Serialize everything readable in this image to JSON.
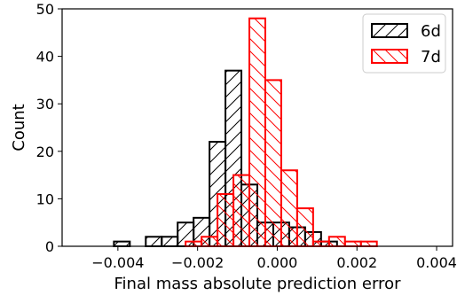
{
  "chart_data": {
    "type": "bar",
    "chart_kind": "histogram",
    "xlabel": "Final mass absolute prediction error",
    "ylabel": "Count",
    "xlim": [
      -0.0054,
      0.0044
    ],
    "ylim": [
      0,
      50
    ],
    "xticks": [
      -0.004,
      -0.002,
      0.0,
      0.002,
      0.004
    ],
    "xtick_labels": [
      "−0.004",
      "−0.002",
      "0.000",
      "0.002",
      "0.004"
    ],
    "yticks": [
      0,
      10,
      20,
      30,
      40,
      50
    ],
    "ytick_labels": [
      "0",
      "10",
      "20",
      "30",
      "40",
      "50"
    ],
    "grid": false,
    "legend_position": "top-right",
    "series": [
      {
        "name": "6d",
        "color": "#000000",
        "hatch": "forward-diagonal",
        "bin_edges": [
          -0.0049,
          -0.0045,
          -0.0041,
          -0.0037,
          -0.0033,
          -0.0029,
          -0.0025,
          -0.0021,
          -0.0017,
          -0.0013,
          -0.0009,
          -0.0005,
          -0.0001,
          0.0003,
          0.0007,
          0.0011,
          0.0015,
          0.0019,
          0.0023,
          0.0027,
          0.0031,
          0.0035,
          0.0039
        ],
        "counts": [
          0,
          0,
          1,
          0,
          2,
          2,
          5,
          6,
          22,
          37,
          13,
          5,
          5,
          4,
          3,
          1,
          0,
          0,
          0,
          0,
          0,
          0
        ]
      },
      {
        "name": "7d",
        "color": "#ff0000",
        "hatch": "back-diagonal",
        "bin_edges": [
          -0.0043,
          -0.0039,
          -0.0035,
          -0.0031,
          -0.0027,
          -0.0023,
          -0.0019,
          -0.0015,
          -0.0011,
          -0.0007,
          -0.0003,
          0.0001,
          0.0005,
          0.0009,
          0.0013,
          0.0017,
          0.0021,
          0.0025,
          0.0029,
          0.0033,
          0.0037,
          0.0041,
          0.0045
        ],
        "counts": [
          0,
          0,
          0,
          0,
          0,
          1,
          2,
          11,
          15,
          48,
          35,
          16,
          8,
          1,
          2,
          1,
          1,
          0,
          0,
          0,
          0,
          0
        ]
      }
    ]
  }
}
